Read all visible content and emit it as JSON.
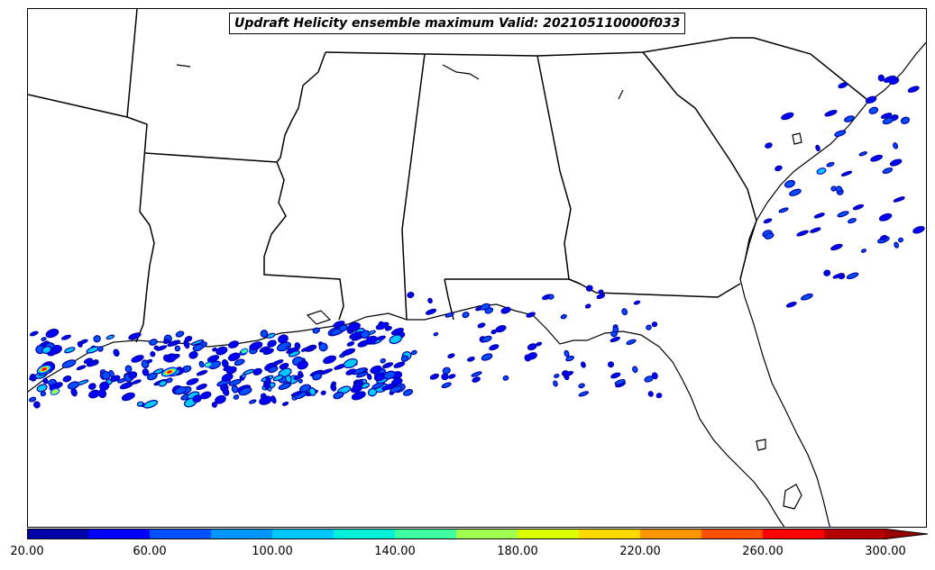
{
  "title": "Updraft Helicity ensemble maximum Valid: 202105110000f033",
  "colorbar": {
    "ticks": [
      "20.00",
      "60.00",
      "100.00",
      "140.00",
      "180.00",
      "220.00",
      "260.00",
      "300.00"
    ],
    "colors": [
      "#0000a8",
      "#0000ff",
      "#0050ff",
      "#0096ff",
      "#00c8ff",
      "#00f0d8",
      "#40ffa0",
      "#a0ff50",
      "#dcff00",
      "#ffd800",
      "#ff9600",
      "#ff5000",
      "#ff0000",
      "#b40000",
      "#960000"
    ],
    "extend": "max",
    "min": 20,
    "max": 300,
    "step": 20
  },
  "map": {
    "background": "#ffffff",
    "line_color": "#000000",
    "feature_types": [
      "state-borders",
      "coastline",
      "lakes"
    ]
  }
}
